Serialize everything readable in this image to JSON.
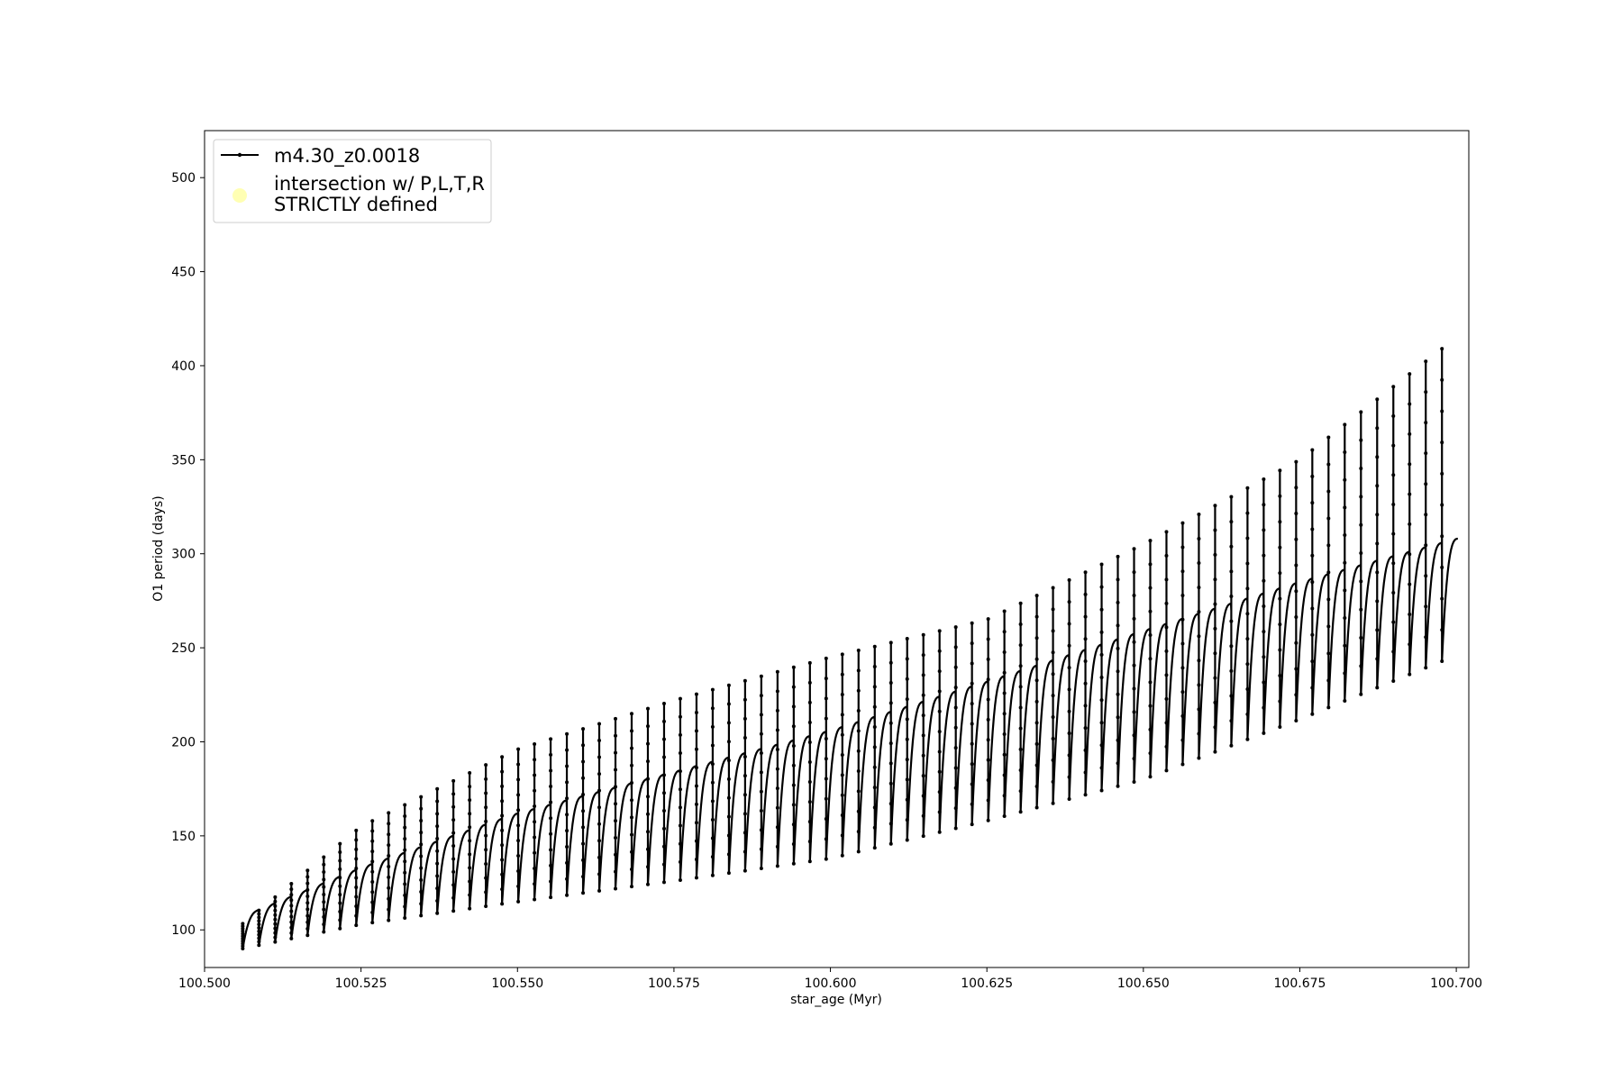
{
  "chart_data": {
    "type": "line",
    "xlabel": "star_age (Myr)",
    "ylabel": "O1 period (days)",
    "xlim": [
      100.5,
      100.702
    ],
    "ylim": [
      80,
      525
    ],
    "xticks": [
      "100.500",
      "100.525",
      "100.550",
      "100.575",
      "100.600",
      "100.625",
      "100.650",
      "100.675",
      "100.700"
    ],
    "yticks": [
      "100",
      "150",
      "200",
      "250",
      "300",
      "350",
      "400",
      "450",
      "500"
    ],
    "grid": false,
    "legend_position": "upper-left",
    "legend": [
      {
        "label": "m4.30_z0.0018",
        "marker": "line-with-dots",
        "color": "#000000"
      },
      {
        "label_line1": "intersection w/ P,L,T,R",
        "label_line2": "STRICTLY defined",
        "marker": "circle",
        "color": "#ffffb3"
      }
    ],
    "series": [
      {
        "name": "m4.30_z0.0018",
        "color": "#000000",
        "pulse_count": 75,
        "x_start": 100.5061,
        "x_end": 100.7003,
        "envelope": {
          "x": [
            100.506,
            100.525,
            100.55,
            100.575,
            100.6,
            100.625,
            100.65,
            100.675,
            100.7
          ],
          "baseline": [
            107,
            133,
            162,
            184,
            206,
            232,
            259,
            285,
            308
          ],
          "pulse_min": [
            90,
            103,
            115,
            126,
            138,
            158,
            180,
            212,
            246
          ],
          "spike_max": [
            103,
            155,
            196,
            222,
            245,
            265,
            305,
            350,
            415
          ]
        }
      }
    ]
  }
}
